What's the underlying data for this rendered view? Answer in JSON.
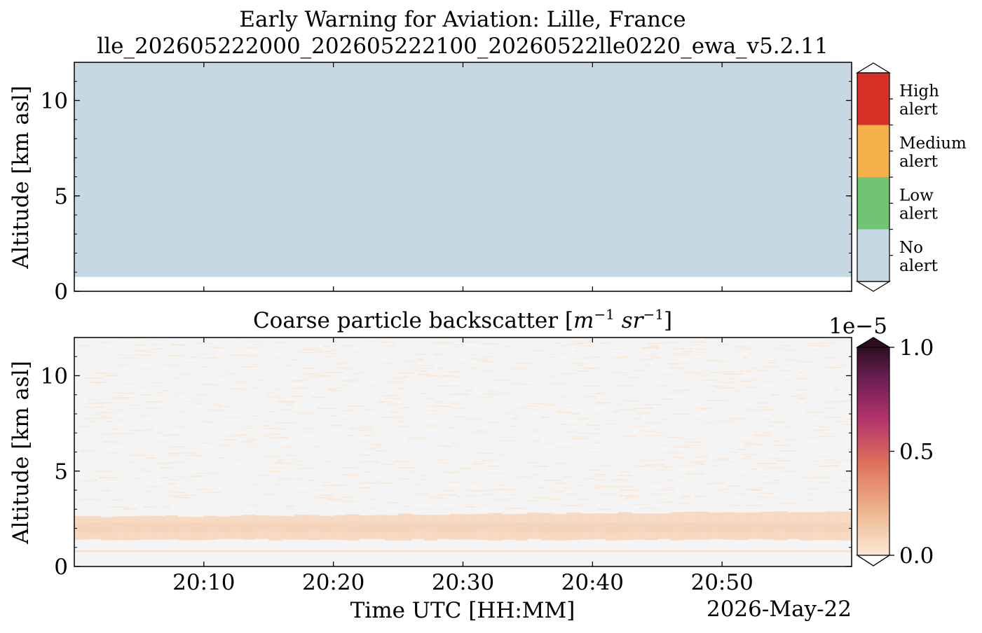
{
  "figure": {
    "title_line1": "Early Warning for Aviation: Lille, France",
    "title_line2": "lle_202605222000_202605222100_20260522lle0220_ewa_v5.2.11",
    "date_label": "2026-May-22",
    "xlabel": "Time UTC [HH:MM]"
  },
  "chart_data": [
    {
      "type": "heatmap",
      "title": "",
      "ylabel": "Altitude [km asl]",
      "xlabel": "",
      "xlim": [
        "20:00",
        "21:00"
      ],
      "ylim": [
        0,
        12
      ],
      "x_ticks": [
        "20:10",
        "20:20",
        "20:30",
        "20:40",
        "20:50"
      ],
      "y_ticks": [
        0,
        5,
        10
      ],
      "y_minor_step": 1,
      "fill": {
        "from_km": 0.75,
        "to_km": 12,
        "category": "No alert",
        "color": "#c6d8e3"
      },
      "colorbar": {
        "type": "categorical",
        "categories": [
          {
            "label_line1": "High",
            "label_line2": "alert",
            "color": "#d73027"
          },
          {
            "label_line1": "Medium",
            "label_line2": "alert",
            "color": "#f6b14a"
          },
          {
            "label_line1": "Low",
            "label_line2": "alert",
            "color": "#71c472"
          },
          {
            "label_line1": "No",
            "label_line2": "alert",
            "color": "#c6d8e3"
          }
        ]
      }
    },
    {
      "type": "heatmap",
      "title_text": "Coarse particle backscatter [",
      "title_math": "m",
      "title_sup1": "−1",
      "title_math2": "sr",
      "title_sup2": "−1",
      "title_close": "]",
      "ylabel": "Altitude [km asl]",
      "xlim": [
        "20:00",
        "21:00"
      ],
      "ylim": [
        0,
        12
      ],
      "x_ticks": [
        "20:10",
        "20:20",
        "20:30",
        "20:40",
        "20:50"
      ],
      "y_ticks": [
        0,
        5,
        10
      ],
      "y_minor_step": 1,
      "background_color": "#f4f4f4",
      "layers": [
        {
          "name": "aerosol layer",
          "from_km": 1.4,
          "to_km": 2.7,
          "value": 0.08
        },
        {
          "name": "near-surface layer",
          "from_km": 0.75,
          "to_km": 0.85,
          "value": 0.06
        },
        {
          "name": "sparse noise",
          "from_km": 3.0,
          "to_km": 12.0,
          "value": 0.02
        }
      ],
      "colorbar": {
        "type": "continuous",
        "exponent_label": "1e−5",
        "ticks": [
          "0.0",
          "0.5",
          "1.0"
        ],
        "range": [
          0.0,
          1.0
        ],
        "colors": [
          "#fbe9d6",
          "#efb893",
          "#dd6f5b",
          "#b4346c",
          "#6c1e55",
          "#2c0f1f"
        ]
      }
    }
  ]
}
